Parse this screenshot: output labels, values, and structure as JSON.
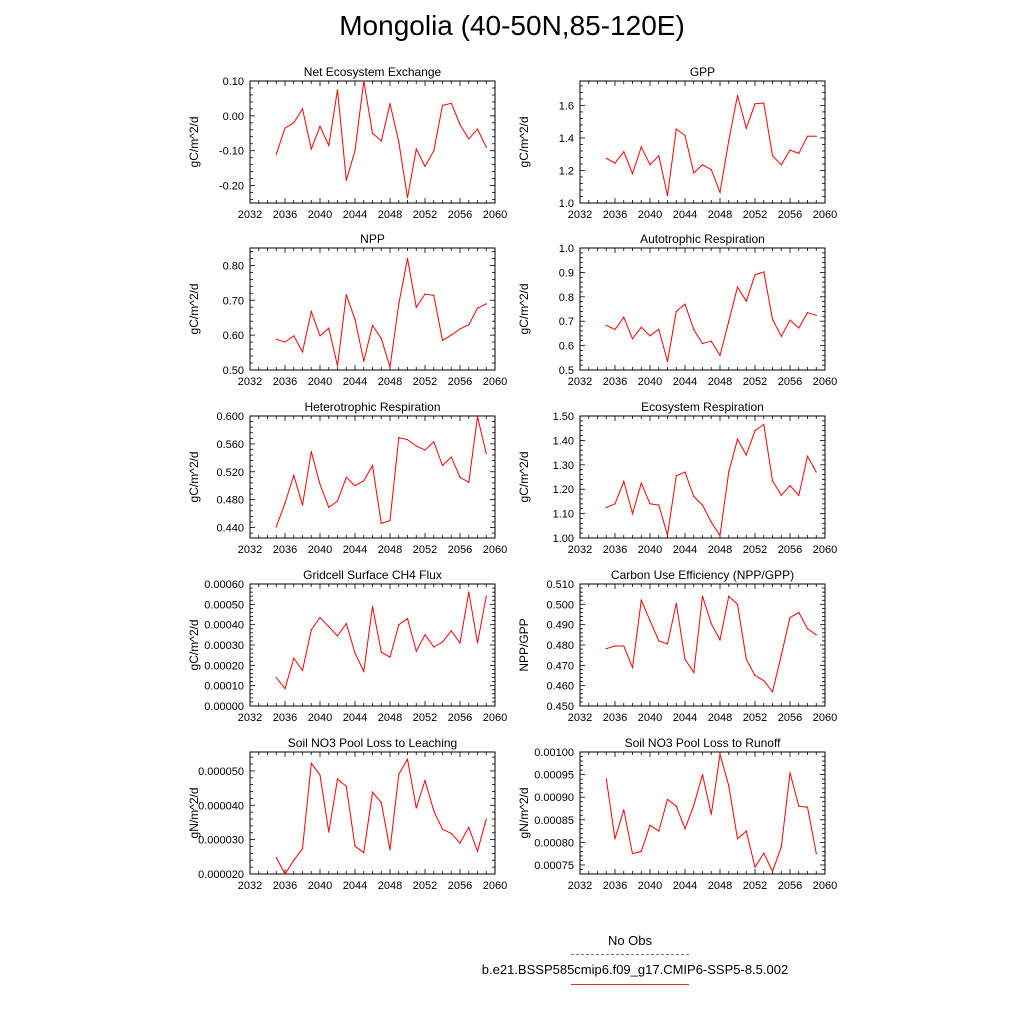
{
  "page": {
    "title": "Mongolia (40-50N,85-120E)"
  },
  "legend": {
    "obs_label": "No Obs",
    "obs_color": "#6a6ae0",
    "run_label": "b.e21.BSSP585cmip6.f09_g17.CMIP6-SSP5-8.5.002",
    "run_color": "#ff0000"
  },
  "chart_data": [
    {
      "type": "line",
      "title": "Net Ecosystem Exchange",
      "ylabel": "gC/m^2/d",
      "xlim": [
        2032,
        2060
      ],
      "ylim": [
        -0.25,
        0.1
      ],
      "xticks": [
        "2032",
        "2036",
        "2040",
        "2044",
        "2048",
        "2052",
        "2056",
        "2060"
      ],
      "yticks": [
        "-0.20",
        "-0.10",
        "0.00",
        "0.10"
      ],
      "x": [
        2035,
        2036,
        2037,
        2038,
        2039,
        2040,
        2041,
        2042,
        2043,
        2044,
        2045,
        2046,
        2047,
        2048,
        2049,
        2050,
        2051,
        2052,
        2053,
        2054,
        2055,
        2056,
        2057,
        2058,
        2059
      ],
      "values": [
        -0.11,
        -0.035,
        -0.02,
        0.02,
        -0.095,
        -0.03,
        -0.085,
        0.075,
        -0.185,
        -0.1,
        0.1,
        -0.05,
        -0.072,
        0.035,
        -0.075,
        -0.235,
        -0.095,
        -0.145,
        -0.1,
        0.03,
        0.036,
        -0.025,
        -0.066,
        -0.038,
        -0.09
      ]
    },
    {
      "type": "line",
      "title": "GPP",
      "ylabel": "gC/m^2/d",
      "xlim": [
        2032,
        2060
      ],
      "ylim": [
        1.0,
        1.75
      ],
      "xticks": [
        "2032",
        "2036",
        "2040",
        "2044",
        "2048",
        "2052",
        "2056",
        "2060"
      ],
      "yticks": [
        "1.0",
        "1.2",
        "1.4",
        "1.6"
      ],
      "x": [
        2035,
        2036,
        2037,
        2038,
        2039,
        2040,
        2041,
        2042,
        2043,
        2044,
        2045,
        2046,
        2047,
        2048,
        2049,
        2050,
        2051,
        2052,
        2053,
        2054,
        2055,
        2056,
        2057,
        2058,
        2059
      ],
      "values": [
        1.275,
        1.245,
        1.315,
        1.18,
        1.345,
        1.235,
        1.29,
        1.045,
        1.455,
        1.415,
        1.185,
        1.235,
        1.205,
        1.065,
        1.385,
        1.66,
        1.46,
        1.61,
        1.615,
        1.29,
        1.235,
        1.325,
        1.305,
        1.41,
        1.41
      ]
    },
    {
      "type": "line",
      "title": "NPP",
      "ylabel": "gC/m^2/d",
      "xlim": [
        2032,
        2060
      ],
      "ylim": [
        0.5,
        0.85
      ],
      "xticks": [
        "2032",
        "2036",
        "2040",
        "2044",
        "2048",
        "2052",
        "2056",
        "2060"
      ],
      "yticks": [
        "0.50",
        "0.60",
        "0.70",
        "0.80"
      ],
      "x": [
        2035,
        2036,
        2037,
        2038,
        2039,
        2040,
        2041,
        2042,
        2043,
        2044,
        2045,
        2046,
        2047,
        2048,
        2049,
        2050,
        2051,
        2052,
        2053,
        2054,
        2055,
        2056,
        2057,
        2058,
        2059
      ],
      "values": [
        0.588,
        0.58,
        0.598,
        0.552,
        0.668,
        0.598,
        0.62,
        0.512,
        0.716,
        0.645,
        0.525,
        0.628,
        0.59,
        0.508,
        0.69,
        0.82,
        0.68,
        0.718,
        0.714,
        0.585,
        0.6,
        0.618,
        0.63,
        0.677,
        0.69
      ]
    },
    {
      "type": "line",
      "title": "Autotrophic Respiration",
      "ylabel": "gC/m^2/d",
      "xlim": [
        2032,
        2060
      ],
      "ylim": [
        0.5,
        1.0
      ],
      "xticks": [
        "2032",
        "2036",
        "2040",
        "2044",
        "2048",
        "2052",
        "2056",
        "2060"
      ],
      "yticks": [
        "0.5",
        "0.6",
        "0.7",
        "0.8",
        "0.9",
        "1.0"
      ],
      "x": [
        2035,
        2036,
        2037,
        2038,
        2039,
        2040,
        2041,
        2042,
        2043,
        2044,
        2045,
        2046,
        2047,
        2048,
        2049,
        2050,
        2051,
        2052,
        2053,
        2054,
        2055,
        2056,
        2057,
        2058,
        2059
      ],
      "values": [
        0.683,
        0.666,
        0.716,
        0.628,
        0.675,
        0.64,
        0.667,
        0.535,
        0.74,
        0.77,
        0.665,
        0.608,
        0.618,
        0.56,
        0.7,
        0.84,
        0.782,
        0.89,
        0.902,
        0.708,
        0.638,
        0.705,
        0.672,
        0.735,
        0.724
      ]
    },
    {
      "type": "line",
      "title": "Heterotrophic Respiration",
      "ylabel": "gC/m^2/d",
      "xlim": [
        2032,
        2060
      ],
      "ylim": [
        0.425,
        0.6
      ],
      "xticks": [
        "2032",
        "2036",
        "2040",
        "2044",
        "2048",
        "2052",
        "2056",
        "2060"
      ],
      "yticks": [
        "0.440",
        "0.480",
        "0.520",
        "0.560",
        "0.600"
      ],
      "x": [
        2035,
        2036,
        2037,
        2038,
        2039,
        2040,
        2041,
        2042,
        2043,
        2044,
        2045,
        2046,
        2047,
        2048,
        2049,
        2050,
        2051,
        2052,
        2053,
        2054,
        2055,
        2056,
        2057,
        2058,
        2059
      ],
      "values": [
        0.441,
        0.475,
        0.515,
        0.472,
        0.549,
        0.502,
        0.469,
        0.478,
        0.512,
        0.5,
        0.507,
        0.529,
        0.446,
        0.45,
        0.569,
        0.566,
        0.557,
        0.551,
        0.563,
        0.529,
        0.541,
        0.512,
        0.505,
        0.599,
        0.546
      ]
    },
    {
      "type": "line",
      "title": "Ecosystem Respiration",
      "ylabel": "gC/m^2/d",
      "xlim": [
        2032,
        2060
      ],
      "ylim": [
        1.0,
        1.5
      ],
      "xticks": [
        "2032",
        "2036",
        "2040",
        "2044",
        "2048",
        "2052",
        "2056",
        "2060"
      ],
      "yticks": [
        "1.00",
        "1.10",
        "1.20",
        "1.30",
        "1.40",
        "1.50"
      ],
      "x": [
        2035,
        2036,
        2037,
        2038,
        2039,
        2040,
        2041,
        2042,
        2043,
        2044,
        2045,
        2046,
        2047,
        2048,
        2049,
        2050,
        2051,
        2052,
        2053,
        2054,
        2055,
        2056,
        2057,
        2058,
        2059
      ],
      "values": [
        1.125,
        1.14,
        1.232,
        1.1,
        1.225,
        1.14,
        1.135,
        1.012,
        1.255,
        1.27,
        1.17,
        1.135,
        1.065,
        1.01,
        1.272,
        1.405,
        1.34,
        1.44,
        1.465,
        1.235,
        1.175,
        1.215,
        1.175,
        1.335,
        1.27
      ]
    },
    {
      "type": "line",
      "title": "Gridcell Surface CH4 Flux",
      "ylabel": "gC/m^2/d",
      "xlim": [
        2032,
        2060
      ],
      "ylim": [
        0.0,
        0.0006
      ],
      "xticks": [
        "2032",
        "2036",
        "2040",
        "2044",
        "2048",
        "2052",
        "2056",
        "2060"
      ],
      "yticks": [
        "0.00000",
        "0.00010",
        "0.00020",
        "0.00030",
        "0.00040",
        "0.00050",
        "0.00060"
      ],
      "x": [
        2035,
        2036,
        2037,
        2038,
        2039,
        2040,
        2041,
        2042,
        2043,
        2044,
        2045,
        2046,
        2047,
        2048,
        2049,
        2050,
        2051,
        2052,
        2053,
        2054,
        2055,
        2056,
        2057,
        2058,
        2059
      ],
      "values": [
        0.00014,
        8.5e-05,
        0.000235,
        0.000175,
        0.000375,
        0.000435,
        0.00039,
        0.000345,
        0.000405,
        0.00026,
        0.00017,
        0.00049,
        0.000265,
        0.00024,
        0.0004,
        0.00043,
        0.00027,
        0.00035,
        0.00029,
        0.000315,
        0.00037,
        0.00031,
        0.00056,
        0.00031,
        0.00054
      ]
    },
    {
      "type": "line",
      "title": "Carbon Use Efficiency (NPP/GPP)",
      "ylabel": "NPP/GPP",
      "xlim": [
        2032,
        2060
      ],
      "ylim": [
        0.45,
        0.51
      ],
      "xticks": [
        "2032",
        "2036",
        "2040",
        "2044",
        "2048",
        "2052",
        "2056",
        "2060"
      ],
      "yticks": [
        "0.450",
        "0.460",
        "0.470",
        "0.480",
        "0.490",
        "0.500",
        "0.510"
      ],
      "x": [
        2035,
        2036,
        2037,
        2038,
        2039,
        2040,
        2041,
        2042,
        2043,
        2044,
        2045,
        2046,
        2047,
        2048,
        2049,
        2050,
        2051,
        2052,
        2053,
        2054,
        2055,
        2056,
        2057,
        2058,
        2059
      ],
      "values": [
        0.4782,
        0.4795,
        0.4795,
        0.469,
        0.502,
        0.492,
        0.482,
        0.4805,
        0.5005,
        0.473,
        0.4665,
        0.504,
        0.4905,
        0.4825,
        0.504,
        0.5,
        0.473,
        0.465,
        0.4625,
        0.457,
        0.475,
        0.4935,
        0.496,
        0.488,
        0.485
      ]
    },
    {
      "type": "line",
      "title": "Soil NO3 Pool Loss to Leaching",
      "ylabel": "gN/m^2/d",
      "xlim": [
        2032,
        2060
      ],
      "ylim": [
        2e-05,
        5.55e-05
      ],
      "xticks": [
        "2032",
        "2036",
        "2040",
        "2044",
        "2048",
        "2052",
        "2056",
        "2060"
      ],
      "yticks": [
        "0.000020",
        "0.000030",
        "0.000040",
        "0.000050"
      ],
      "x": [
        2035,
        2036,
        2037,
        2038,
        2039,
        2040,
        2041,
        2042,
        2043,
        2044,
        2045,
        2046,
        2047,
        2048,
        2049,
        2050,
        2051,
        2052,
        2053,
        2054,
        2055,
        2056,
        2057,
        2058,
        2059
      ],
      "values": [
        2.48e-05,
        2e-05,
        2.4e-05,
        2.74e-05,
        5.22e-05,
        4.88e-05,
        3.22e-05,
        4.76e-05,
        4.55e-05,
        2.81e-05,
        2.62e-05,
        4.38e-05,
        4.08e-05,
        2.7e-05,
        4.9e-05,
        5.34e-05,
        3.92e-05,
        4.72e-05,
        3.84e-05,
        3.3e-05,
        3.18e-05,
        2.9e-05,
        3.36e-05,
        2.66e-05,
        3.6e-05
      ]
    },
    {
      "type": "line",
      "title": "Soil NO3 Pool Loss to Runoff",
      "ylabel": "gN/m^2/d",
      "xlim": [
        2032,
        2060
      ],
      "ylim": [
        0.00073,
        0.001
      ],
      "xticks": [
        "2032",
        "2036",
        "2040",
        "2044",
        "2048",
        "2052",
        "2056",
        "2060"
      ],
      "yticks": [
        "0.00075",
        "0.00080",
        "0.00085",
        "0.00090",
        "0.00095",
        "0.00100"
      ],
      "x": [
        2035,
        2036,
        2037,
        2038,
        2039,
        2040,
        2041,
        2042,
        2043,
        2044,
        2045,
        2046,
        2047,
        2048,
        2049,
        2050,
        2051,
        2052,
        2053,
        2054,
        2055,
        2056,
        2057,
        2058,
        2059
      ],
      "values": [
        0.00094,
        0.000808,
        0.000872,
        0.000775,
        0.00078,
        0.000838,
        0.000825,
        0.000895,
        0.00088,
        0.00083,
        0.000882,
        0.00095,
        0.000862,
        0.000995,
        0.000925,
        0.000808,
        0.000825,
        0.000745,
        0.000776,
        0.000736,
        0.00079,
        0.000954,
        0.00088,
        0.000878,
        0.000775
      ]
    }
  ]
}
